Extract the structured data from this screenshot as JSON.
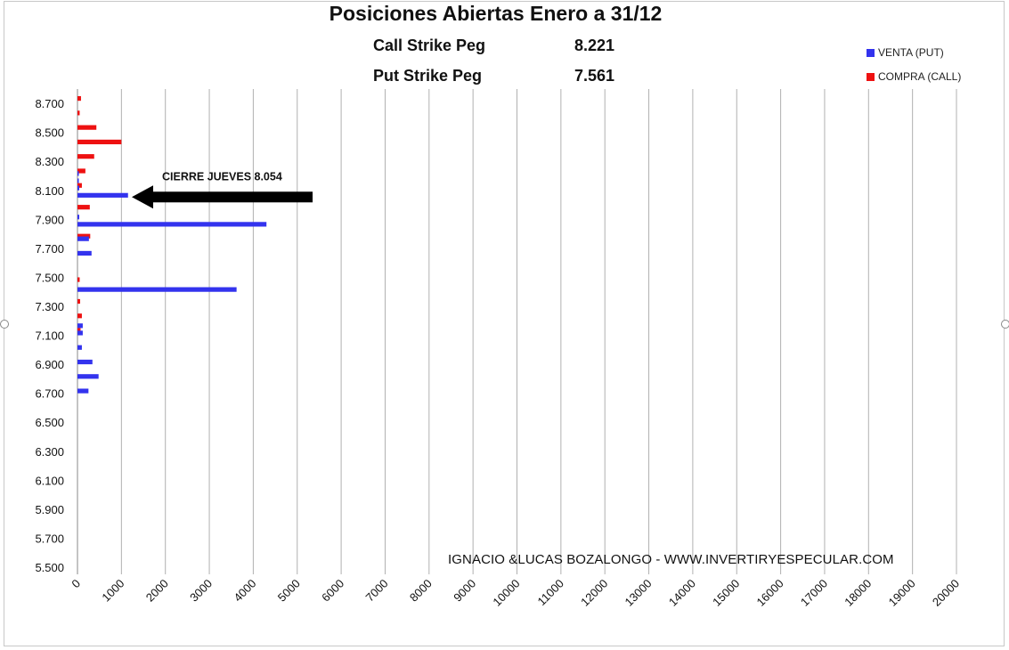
{
  "chart_data": {
    "type": "bar",
    "orientation": "horizontal",
    "title": "Posiciones Abiertas Enero a 31/12",
    "x_ticks": [
      0,
      1000,
      2000,
      3000,
      4000,
      5000,
      6000,
      7000,
      8000,
      9000,
      10000,
      11000,
      12000,
      13000,
      14000,
      15000,
      16000,
      17000,
      18000,
      19000,
      20000
    ],
    "xlim": [
      0,
      20000
    ],
    "y_tick_labels": [
      "8.700",
      "8.500",
      "8.300",
      "8.100",
      "7.900",
      "7.700",
      "7.500",
      "7.300",
      "7.100",
      "6.900",
      "6.700",
      "6.500",
      "6.300",
      "6.100",
      "5.900",
      "5.700",
      "5.500"
    ],
    "categories": [
      8.75,
      8.7,
      8.65,
      8.6,
      8.55,
      8.5,
      8.45,
      8.4,
      8.35,
      8.3,
      8.25,
      8.2,
      8.15,
      8.1,
      8.05,
      8.0,
      7.95,
      7.9,
      7.85,
      7.8,
      7.75,
      7.7,
      7.65,
      7.6,
      7.55,
      7.5,
      7.45,
      7.4,
      7.35,
      7.3,
      7.25,
      7.2,
      7.15,
      7.1,
      7.05,
      7.0,
      6.95,
      6.9,
      6.85,
      6.8,
      6.75,
      6.7,
      6.65,
      6.6,
      6.55,
      6.5,
      6.45,
      6.4,
      6.35,
      6.3,
      6.25,
      6.2,
      6.15,
      6.1,
      6.05,
      6.0,
      5.95,
      5.9,
      5.85,
      5.8,
      5.75,
      5.7,
      5.65,
      5.6,
      5.55,
      5.5
    ],
    "series": [
      {
        "name": "VENTA (PUT)",
        "color": "#3333ee",
        "values": [
          0,
          0,
          0,
          0,
          0,
          0,
          0,
          0,
          0,
          0,
          0,
          20,
          20,
          40,
          1150,
          0,
          0,
          40,
          4300,
          0,
          260,
          0,
          320,
          0,
          0,
          0,
          0,
          3620,
          0,
          0,
          0,
          0,
          120,
          120,
          0,
          100,
          0,
          340,
          0,
          480,
          0,
          250,
          0,
          0,
          0,
          0,
          0,
          0,
          0,
          0,
          0,
          0,
          0,
          0,
          0,
          0,
          0,
          0,
          0,
          0,
          0,
          0,
          0,
          0,
          0,
          0
        ]
      },
      {
        "name": "COMPRA (CALL)",
        "color": "#ee1111",
        "values": [
          80,
          0,
          50,
          0,
          430,
          0,
          1000,
          0,
          380,
          0,
          180,
          0,
          100,
          0,
          0,
          280,
          0,
          0,
          0,
          290,
          0,
          0,
          0,
          0,
          0,
          50,
          0,
          0,
          60,
          0,
          100,
          0,
          70,
          0,
          0,
          0,
          0,
          0,
          0,
          0,
          0,
          0,
          0,
          0,
          0,
          0,
          0,
          0,
          0,
          0,
          0,
          0,
          0,
          0,
          0,
          0,
          0,
          0,
          0,
          0,
          0,
          0,
          0,
          0,
          0,
          0
        ]
      }
    ],
    "legend_position": "top-right",
    "grid": "vertical",
    "annotation": {
      "text": "CIERRE JUEVES  8.054",
      "points_to": 8.054
    }
  },
  "pegs": {
    "call_label": "Call Strike Peg",
    "call_value": "8.221",
    "put_label": "Put Strike Peg",
    "put_value": "7.561"
  },
  "legend": {
    "put_label": "VENTA (PUT)",
    "call_label": "COMPRA (CALL)"
  },
  "credit": "IGNACIO &LUCAS BOZALONGO -  WWW.INVERTIRYESPECULAR.COM"
}
